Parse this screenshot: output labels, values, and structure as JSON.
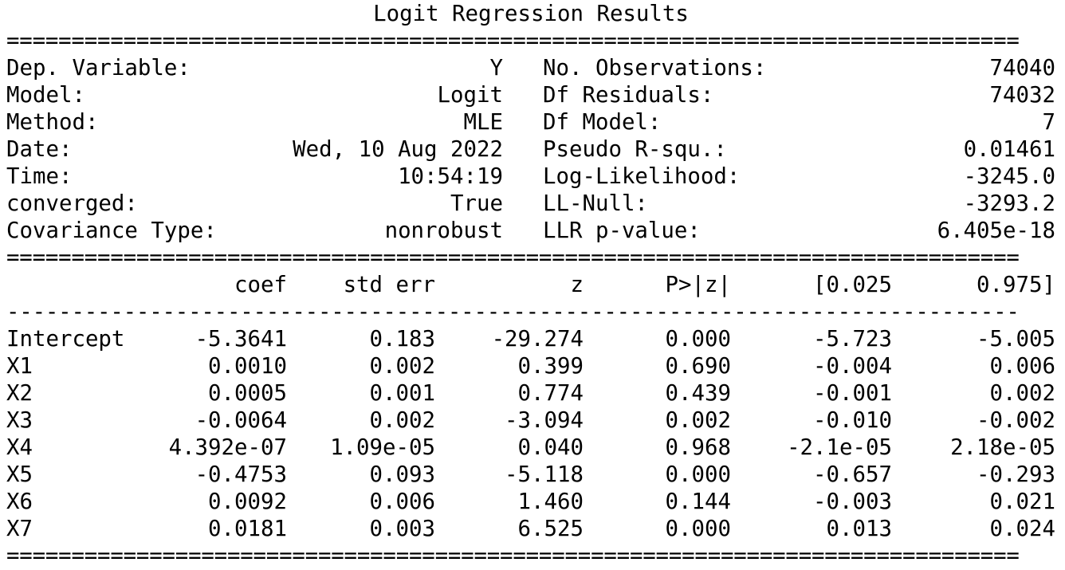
{
  "title": "Logit Regression Results",
  "rules": {
    "double": "==============================================================================",
    "single": "------------------------------------------------------------------------------"
  },
  "info_rows": [
    {
      "left_label": "Dep. Variable:",
      "left_value": "Y",
      "right_label": "No. Observations:",
      "right_value": "74040"
    },
    {
      "left_label": "Model:",
      "left_value": "Logit",
      "right_label": "Df Residuals:",
      "right_value": "74032"
    },
    {
      "left_label": "Method:",
      "left_value": "MLE",
      "right_label": "Df Model:",
      "right_value": "7"
    },
    {
      "left_label": "Date:",
      "left_value": "Wed, 10 Aug 2022",
      "right_label": "Pseudo R-squ.:",
      "right_value": "0.01461"
    },
    {
      "left_label": "Time:",
      "left_value": "10:54:19",
      "right_label": "Log-Likelihood:",
      "right_value": "-3245.0"
    },
    {
      "left_label": "converged:",
      "left_value": "True",
      "right_label": "LL-Null:",
      "right_value": "-3293.2"
    },
    {
      "left_label": "Covariance Type:",
      "left_value": "nonrobust",
      "right_label": "LLR p-value:",
      "right_value": "6.405e-18"
    }
  ],
  "coef_table": {
    "headers": [
      "coef",
      "std err",
      "z",
      "P>|z|",
      "[0.025",
      "0.975]"
    ],
    "rows": [
      {
        "name": "Intercept",
        "values": [
          "-5.3641",
          "0.183",
          "-29.274",
          "0.000",
          "-5.723",
          "-5.005"
        ]
      },
      {
        "name": "X1",
        "values": [
          "0.0010",
          "0.002",
          "0.399",
          "0.690",
          "-0.004",
          "0.006"
        ]
      },
      {
        "name": "X2",
        "values": [
          "0.0005",
          "0.001",
          "0.774",
          "0.439",
          "-0.001",
          "0.002"
        ]
      },
      {
        "name": "X3",
        "values": [
          "-0.0064",
          "0.002",
          "-3.094",
          "0.002",
          "-0.010",
          "-0.002"
        ]
      },
      {
        "name": "X4",
        "values": [
          "4.392e-07",
          "1.09e-05",
          "0.040",
          "0.968",
          "-2.1e-05",
          "2.18e-05"
        ]
      },
      {
        "name": "X5",
        "values": [
          "-0.4753",
          "0.093",
          "-5.118",
          "0.000",
          "-0.657",
          "-0.293"
        ]
      },
      {
        "name": "X6",
        "values": [
          "0.0092",
          "0.006",
          "1.460",
          "0.144",
          "-0.003",
          "0.021"
        ]
      },
      {
        "name": "X7",
        "values": [
          "0.0181",
          "0.003",
          "6.525",
          "0.000",
          "0.013",
          "0.024"
        ]
      }
    ]
  }
}
